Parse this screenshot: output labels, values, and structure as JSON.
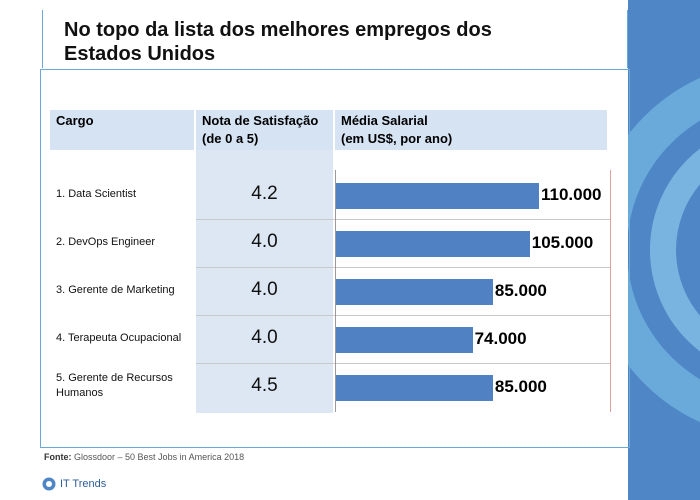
{
  "title": "No topo da lista dos melhores empregos dos Estados Unidos",
  "columns": {
    "cargo": "Cargo",
    "nota_line1": "Nota de Satisfação",
    "nota_line2": "(de 0 a 5)",
    "media_line1": "Média Salarial",
    "media_line2": "(em US$, por ano)"
  },
  "rows": [
    {
      "label": "1. Data Scientist",
      "score": "4.2",
      "salary_label": "110.000"
    },
    {
      "label": "2. DevOps Engineer",
      "score": "4.0",
      "salary_label": "105.000"
    },
    {
      "label": "3. Gerente de Marketing",
      "score": "4.0",
      "salary_label": "85.000"
    },
    {
      "label": "4. Terapeuta Ocupacional",
      "score": "4.0",
      "salary_label": "74.000"
    },
    {
      "label": "5. Gerente de Recursos Humanos",
      "score": "4.5",
      "salary_label": "85.000"
    }
  ],
  "source": {
    "label": "Fonte:",
    "text": "Glossdoor – 50 Best Jobs in America 2018"
  },
  "logo": {
    "text": "IT Trends"
  },
  "colors": {
    "bar": "#4f81c3",
    "header": "#d5e3f3",
    "panel": "#4f86c6"
  },
  "chart_data": {
    "type": "bar",
    "orientation": "horizontal",
    "title": "No topo da lista dos melhores empregos dos Estados Unidos",
    "categories": [
      "1. Data Scientist",
      "2. DevOps Engineer",
      "3. Gerente de Marketing",
      "4. Terapeuta Ocupacional",
      "5. Gerente de Recursos Humanos"
    ],
    "series": [
      {
        "name": "Média Salarial (em US$, por ano)",
        "values": [
          110000,
          105000,
          85000,
          74000,
          85000
        ]
      },
      {
        "name": "Nota de Satisfação (de 0 a 5)",
        "values": [
          4.2,
          4.0,
          4.0,
          4.0,
          4.5
        ]
      }
    ],
    "xlim": [
      0,
      120000
    ]
  }
}
